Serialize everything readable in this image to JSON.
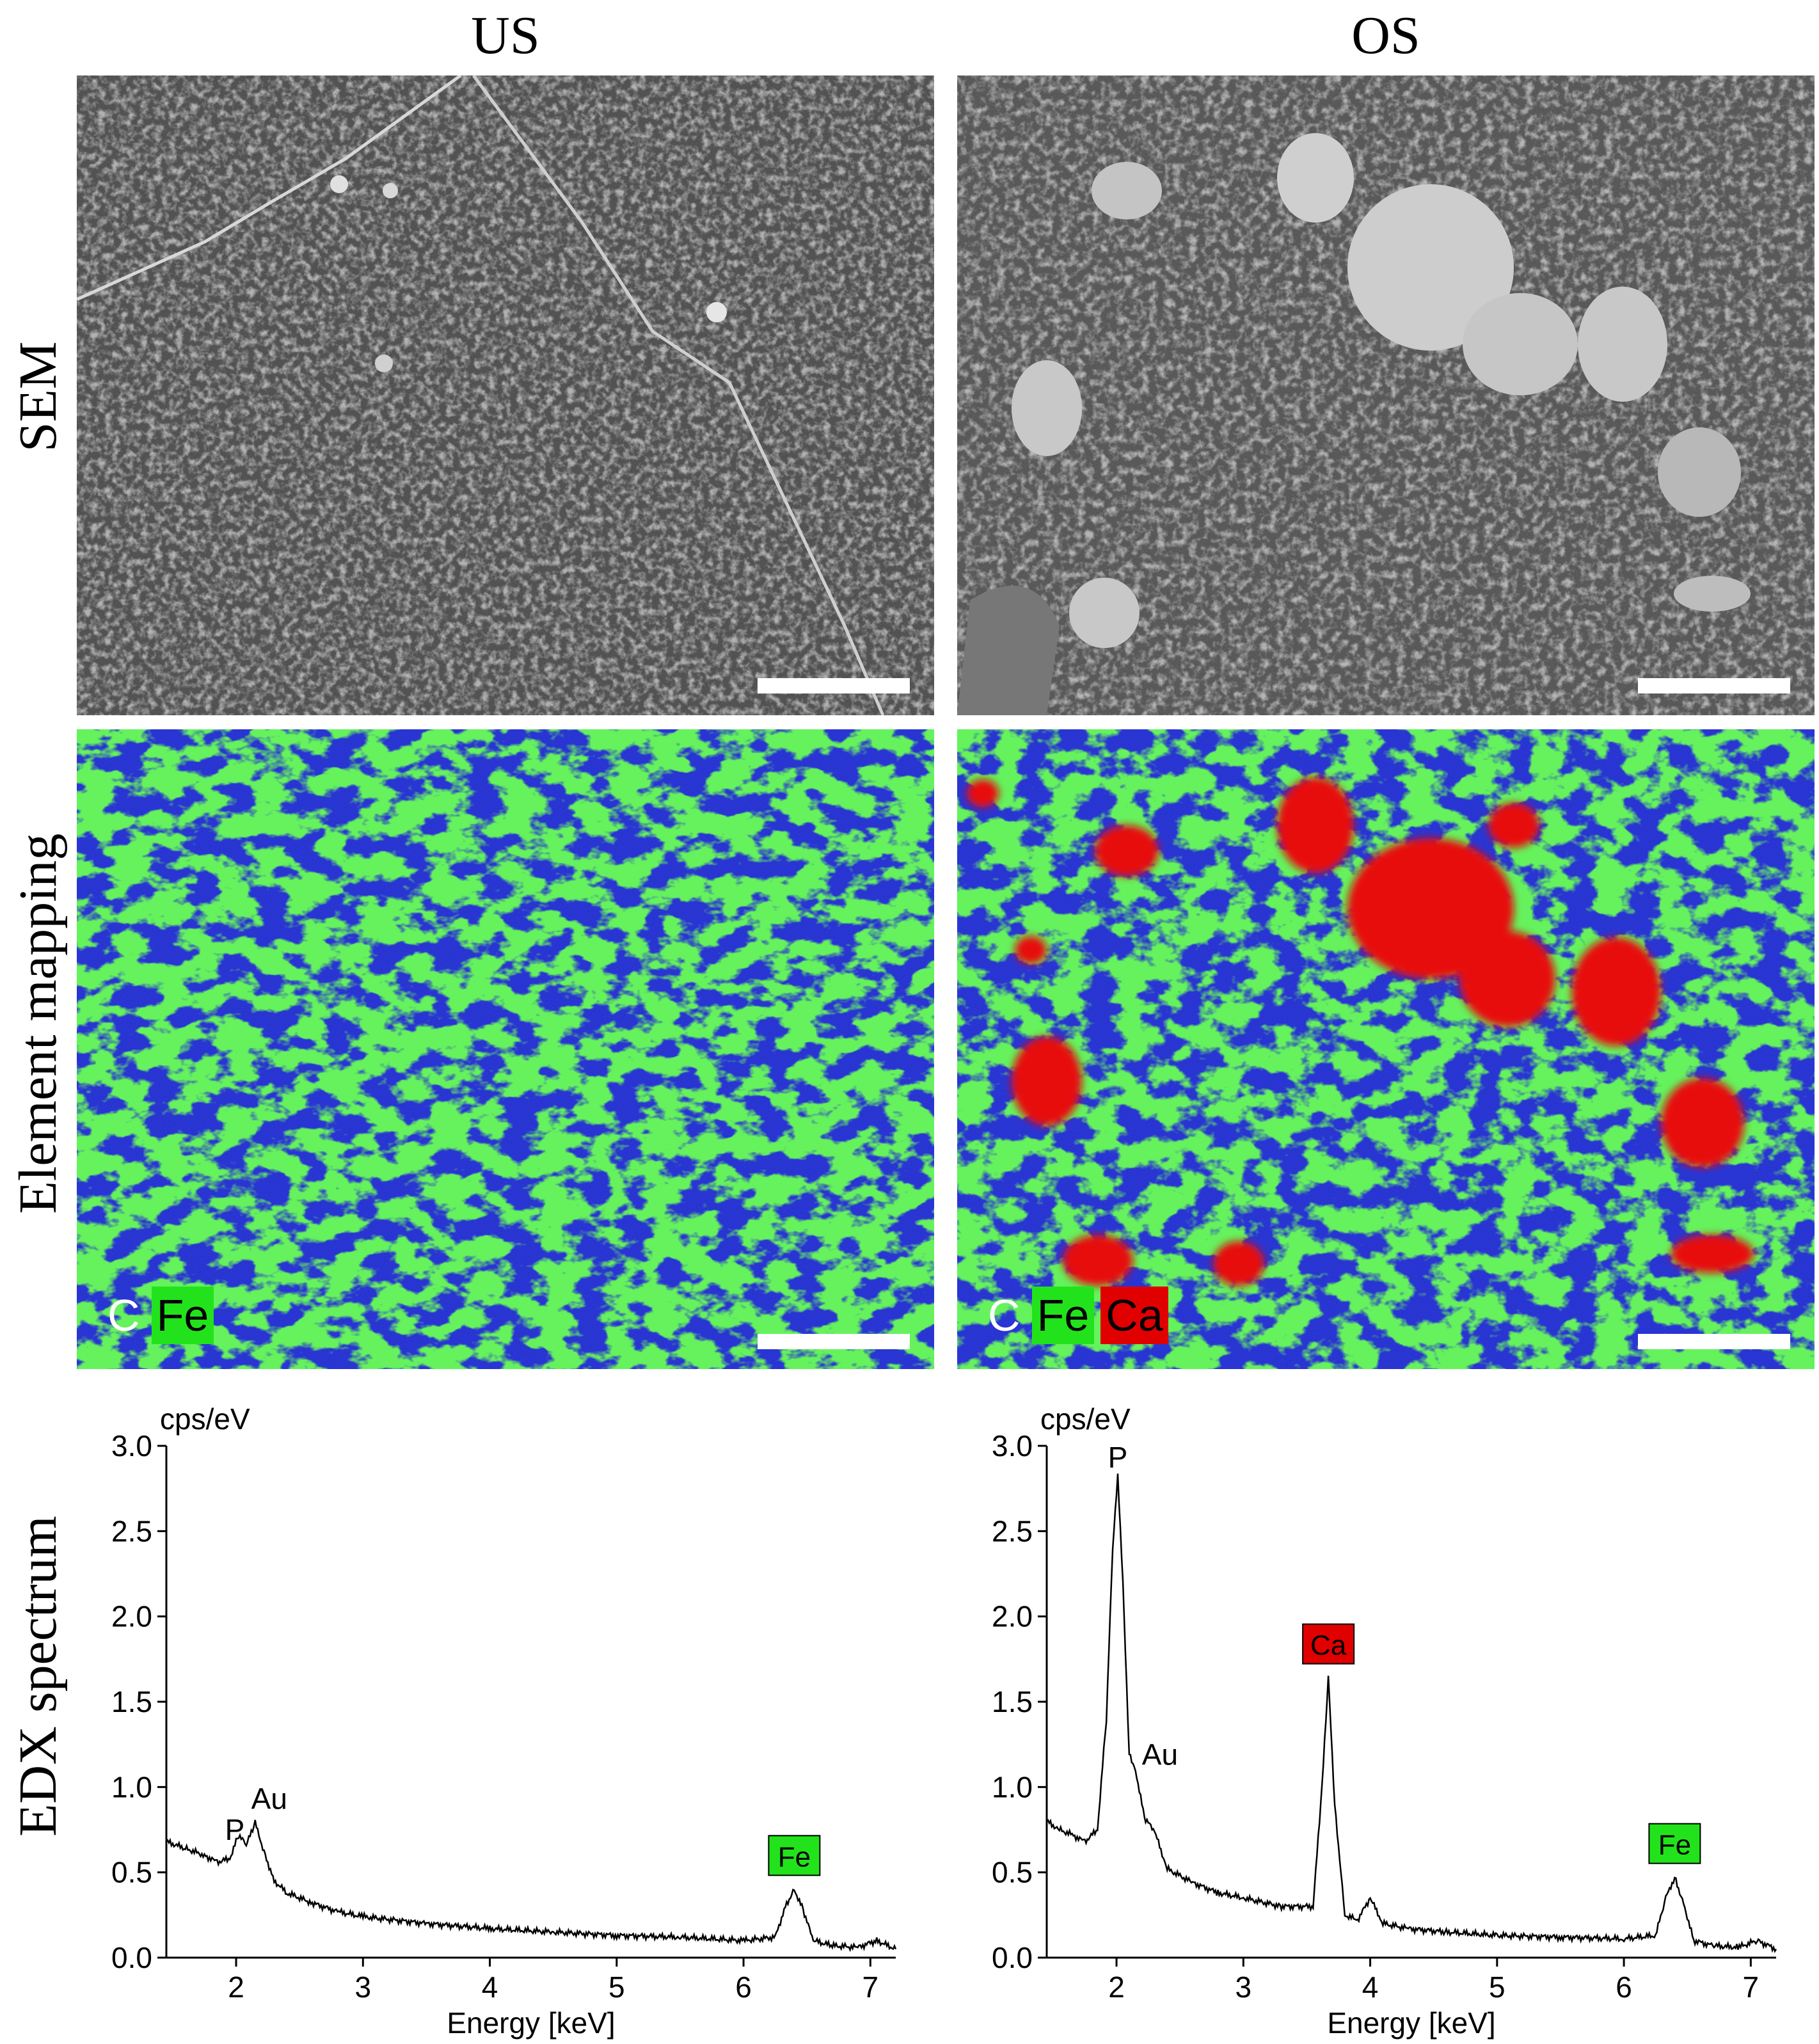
{
  "columns": [
    {
      "title": "US"
    },
    {
      "title": "OS"
    }
  ],
  "rows": {
    "sem": "SEM",
    "mapping": "Element mapping",
    "edx": "EDX spectrum"
  },
  "legend": {
    "us": [
      {
        "label": "C",
        "color": "#ffffff"
      },
      {
        "label": "Fe",
        "color": "#22e31b"
      }
    ],
    "os": [
      {
        "label": "C",
        "color": "#ffffff"
      },
      {
        "label": "Fe",
        "color": "#22e31b"
      },
      {
        "label": "Ca",
        "color": "#e00000"
      }
    ]
  },
  "colors": {
    "sem_background": "#3a3a3a",
    "map_background": "#1020e0",
    "fe": "#22e31b",
    "ca": "#e00000"
  },
  "chart_data": [
    {
      "type": "line",
      "panel": "US",
      "ylabel": "cps/eV",
      "xlabel": "Energy [keV]",
      "xlim": [
        1.45,
        7.2
      ],
      "ylim": [
        0,
        3.0
      ],
      "xticks": [
        "2",
        "3",
        "4",
        "5",
        "6",
        "7"
      ],
      "yticks": [
        "0.0",
        "0.5",
        "1.0",
        "1.5",
        "2.0",
        "2.5",
        "3.0"
      ],
      "x": [
        1.45,
        1.6,
        1.75,
        1.85,
        1.95,
        2.02,
        2.08,
        2.15,
        2.22,
        2.3,
        2.4,
        2.6,
        2.8,
        3.0,
        3.5,
        4.0,
        4.5,
        5.0,
        5.5,
        6.0,
        6.25,
        6.33,
        6.4,
        6.47,
        6.55,
        6.7,
        6.9,
        7.05,
        7.2
      ],
      "y": [
        0.68,
        0.64,
        0.6,
        0.56,
        0.58,
        0.72,
        0.66,
        0.79,
        0.62,
        0.45,
        0.38,
        0.32,
        0.27,
        0.24,
        0.2,
        0.17,
        0.15,
        0.13,
        0.12,
        0.1,
        0.12,
        0.3,
        0.4,
        0.28,
        0.1,
        0.07,
        0.06,
        0.1,
        0.05
      ],
      "annotations": [
        {
          "label": "P",
          "x": 2.02,
          "y": 0.72,
          "boxed": false
        },
        {
          "label": "Au",
          "x": 2.15,
          "y": 0.79,
          "boxed": false
        },
        {
          "label": "Fe",
          "x": 6.4,
          "y": 0.4,
          "boxed": true,
          "color": "#22e31b"
        }
      ]
    },
    {
      "type": "line",
      "panel": "OS",
      "ylabel": "cps/eV",
      "xlabel": "Energy [keV]",
      "xlim": [
        1.45,
        7.2
      ],
      "ylim": [
        0,
        3.0
      ],
      "xticks": [
        "2",
        "3",
        "4",
        "5",
        "6",
        "7"
      ],
      "yticks": [
        "0.0",
        "0.5",
        "1.0",
        "1.5",
        "2.0",
        "2.5",
        "3.0"
      ],
      "x": [
        1.45,
        1.55,
        1.65,
        1.75,
        1.85,
        1.92,
        1.97,
        2.01,
        2.05,
        2.1,
        2.15,
        2.22,
        2.3,
        2.4,
        2.6,
        2.8,
        3.0,
        3.3,
        3.55,
        3.62,
        3.67,
        3.72,
        3.8,
        3.9,
        4.0,
        4.1,
        4.3,
        4.6,
        5.0,
        5.5,
        6.0,
        6.25,
        6.33,
        6.4,
        6.47,
        6.55,
        6.7,
        6.9,
        7.05,
        7.2
      ],
      "y": [
        0.8,
        0.75,
        0.72,
        0.68,
        0.75,
        1.4,
        2.4,
        2.82,
        2.2,
        1.2,
        1.1,
        0.82,
        0.74,
        0.52,
        0.44,
        0.38,
        0.35,
        0.3,
        0.3,
        1.0,
        1.64,
        0.9,
        0.25,
        0.22,
        0.35,
        0.2,
        0.17,
        0.15,
        0.13,
        0.12,
        0.11,
        0.13,
        0.35,
        0.47,
        0.32,
        0.1,
        0.07,
        0.06,
        0.1,
        0.05
      ],
      "annotations": [
        {
          "label": "P",
          "x": 2.01,
          "y": 2.82,
          "boxed": false
        },
        {
          "label": "Au",
          "x": 2.15,
          "y": 1.1,
          "boxed": false
        },
        {
          "label": "Ca",
          "x": 3.67,
          "y": 1.64,
          "boxed": true,
          "color": "#e00000"
        },
        {
          "label": "Fe",
          "x": 6.4,
          "y": 0.47,
          "boxed": true,
          "color": "#22e31b"
        }
      ]
    }
  ]
}
